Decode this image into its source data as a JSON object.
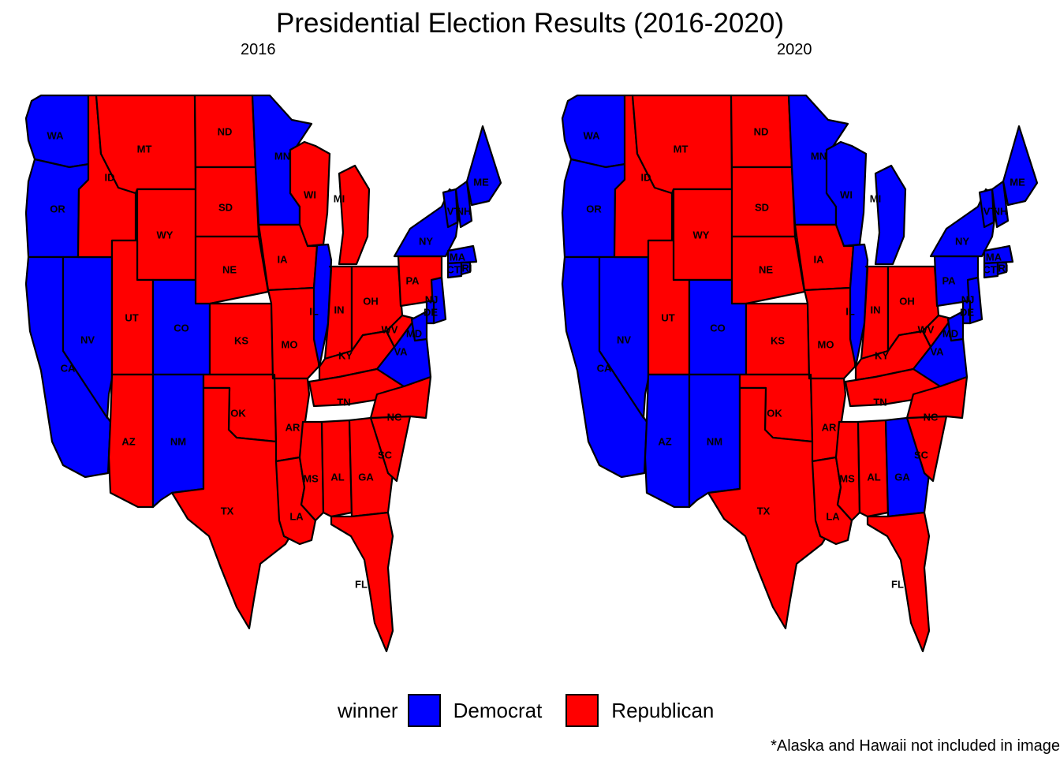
{
  "title": "Presidential Election Results (2016-2020)",
  "colors": {
    "Democrat": "#0000FF",
    "Republican": "#FF0000"
  },
  "legend": {
    "title": "winner",
    "items": [
      {
        "label": "Democrat",
        "color": "#0000FF"
      },
      {
        "label": "Republican",
        "color": "#FF0000"
      }
    ]
  },
  "note": "*Alaska and Hawaii not included in image",
  "panels": [
    {
      "label": "2016",
      "winners": {
        "WA": "Democrat",
        "OR": "Democrat",
        "CA": "Democrat",
        "NV": "Democrat",
        "ID": "Republican",
        "MT": "Republican",
        "WY": "Republican",
        "UT": "Republican",
        "CO": "Democrat",
        "AZ": "Republican",
        "NM": "Democrat",
        "ND": "Republican",
        "SD": "Republican",
        "NE": "Republican",
        "KS": "Republican",
        "OK": "Republican",
        "TX": "Republican",
        "MN": "Democrat",
        "IA": "Republican",
        "MO": "Republican",
        "AR": "Republican",
        "LA": "Republican",
        "WI": "Republican",
        "IL": "Democrat",
        "MI": "Republican",
        "IN": "Republican",
        "OH": "Republican",
        "KY": "Republican",
        "TN": "Republican",
        "MS": "Republican",
        "AL": "Republican",
        "GA": "Republican",
        "FL": "Republican",
        "SC": "Republican",
        "NC": "Republican",
        "VA": "Democrat",
        "WV": "Republican",
        "PA": "Republican",
        "NY": "Democrat",
        "VT": "Democrat",
        "NH": "Democrat",
        "ME": "Democrat",
        "MA": "Democrat",
        "CT": "Democrat",
        "RI": "Democrat",
        "NJ": "Democrat",
        "DE": "Democrat",
        "MD": "Democrat"
      }
    },
    {
      "label": "2020",
      "winners": {
        "WA": "Democrat",
        "OR": "Democrat",
        "CA": "Democrat",
        "NV": "Democrat",
        "ID": "Republican",
        "MT": "Republican",
        "WY": "Republican",
        "UT": "Republican",
        "CO": "Democrat",
        "AZ": "Democrat",
        "NM": "Democrat",
        "ND": "Republican",
        "SD": "Republican",
        "NE": "Republican",
        "KS": "Republican",
        "OK": "Republican",
        "TX": "Republican",
        "MN": "Democrat",
        "IA": "Republican",
        "MO": "Republican",
        "AR": "Republican",
        "LA": "Republican",
        "WI": "Democrat",
        "IL": "Democrat",
        "MI": "Democrat",
        "IN": "Republican",
        "OH": "Republican",
        "KY": "Republican",
        "TN": "Republican",
        "MS": "Republican",
        "AL": "Republican",
        "GA": "Democrat",
        "FL": "Republican",
        "SC": "Republican",
        "NC": "Republican",
        "VA": "Democrat",
        "WV": "Republican",
        "PA": "Democrat",
        "NY": "Democrat",
        "VT": "Democrat",
        "NH": "Democrat",
        "ME": "Democrat",
        "MA": "Democrat",
        "CT": "Democrat",
        "RI": "Democrat",
        "NJ": "Democrat",
        "DE": "Democrat",
        "MD": "Democrat"
      }
    }
  ],
  "state_labels": [
    "WA",
    "OR",
    "CA",
    "NV",
    "ID",
    "MT",
    "WY",
    "UT",
    "CO",
    "AZ",
    "NM",
    "ND",
    "SD",
    "NE",
    "KS",
    "OK",
    "TX",
    "MN",
    "IA",
    "MO",
    "AR",
    "LA",
    "WI",
    "IL",
    "MI",
    "IN",
    "OH",
    "KY",
    "TN",
    "MS",
    "AL",
    "GA",
    "FL",
    "SC",
    "NC",
    "VA",
    "WV",
    "PA",
    "NY",
    "VT",
    "NH",
    "ME",
    "MA",
    "CT",
    "RI",
    "NJ",
    "DE",
    "MD"
  ]
}
